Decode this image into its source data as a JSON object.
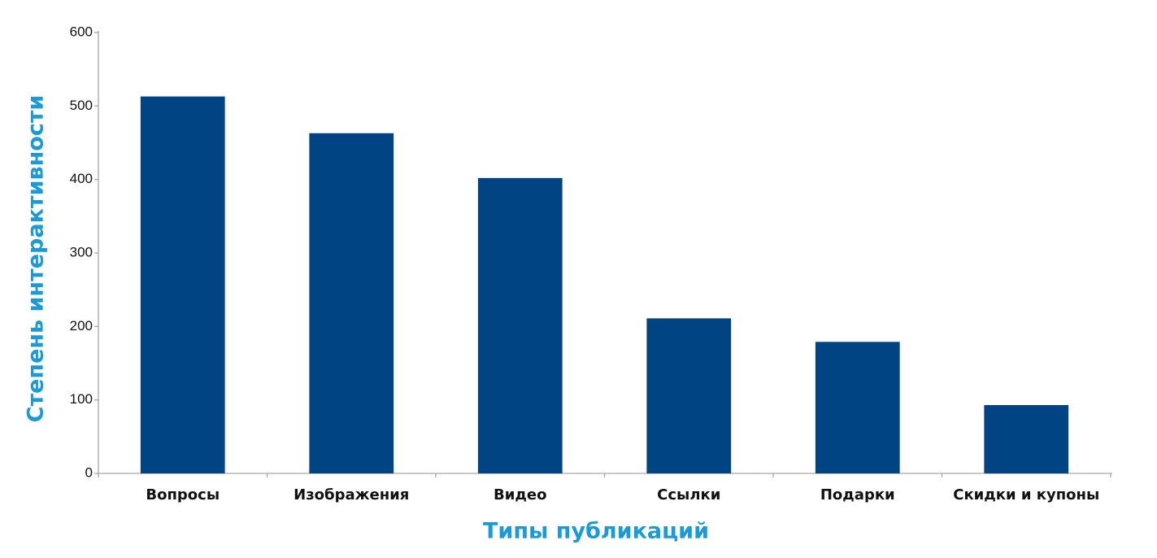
{
  "chart_data": {
    "type": "bar",
    "x_label": "Типы публикаций",
    "y_label": "Степень интерактивности",
    "categories": [
      "Вопросы",
      "Изображения",
      "Видео",
      "Ссылки",
      "Подарки",
      "Скидки и купоны"
    ],
    "values": [
      513,
      463,
      402,
      211,
      179,
      93
    ],
    "color": "#004483",
    "ylim": [
      0,
      600
    ],
    "yticks": [
      0,
      100,
      200,
      300,
      400,
      500,
      600
    ],
    "grid": false
  }
}
